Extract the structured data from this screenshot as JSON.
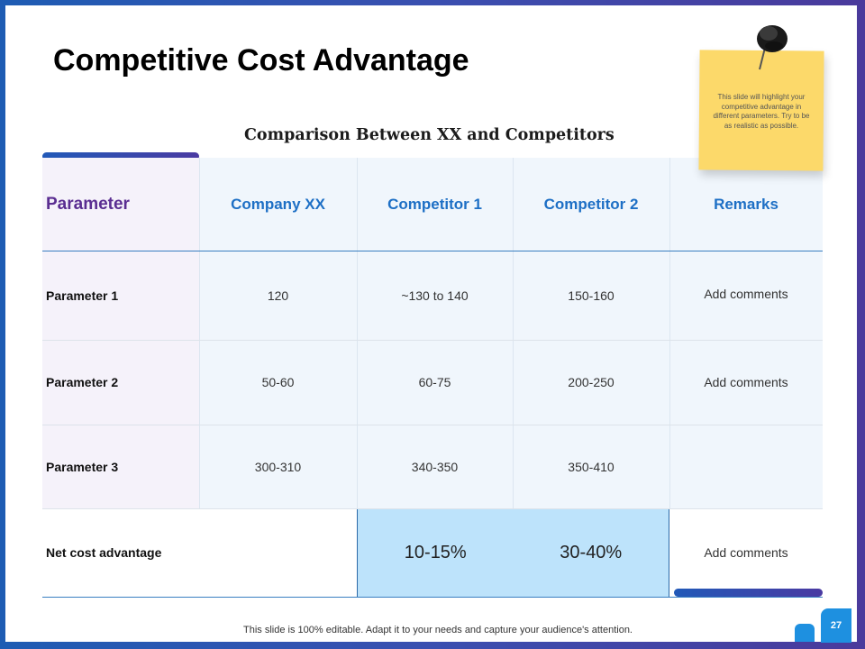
{
  "slide": {
    "title": "Competitive Cost Advantage",
    "subtitle": "Comparison Between XX and Competitors",
    "footer": "This slide is 100% editable. Adapt it to your needs and capture your audience's attention.",
    "page_number": "27"
  },
  "note": {
    "text": "This slide will highlight your competitive advantage in different parameters. Try to be as realistic as possible."
  },
  "table": {
    "headers": [
      "Parameter",
      "Company XX",
      "Competitor 1",
      "Competitor 2",
      "Remarks"
    ],
    "rows": [
      {
        "label": "Parameter 1",
        "company_xx": "120",
        "competitor_1": "~130 to 140",
        "competitor_2": "150-160",
        "remarks": "Add comments"
      },
      {
        "label": "Parameter 2",
        "company_xx": "50-60",
        "competitor_1": "60-75",
        "competitor_2": "200-250",
        "remarks": "Add comments"
      },
      {
        "label": "Parameter 3",
        "company_xx": "300-310",
        "competitor_1": "340-350",
        "competitor_2": "350-410",
        "remarks": ""
      }
    ],
    "summary": {
      "label": "Net cost advantage",
      "competitor_1": "10-15%",
      "competitor_2": "30-40%",
      "remarks": "Add comments"
    }
  },
  "colors": {
    "accent_blue": "#1d6fc5",
    "accent_purple": "#5a2d91",
    "highlight": "#bde3fb",
    "note": "#fcd96a"
  }
}
